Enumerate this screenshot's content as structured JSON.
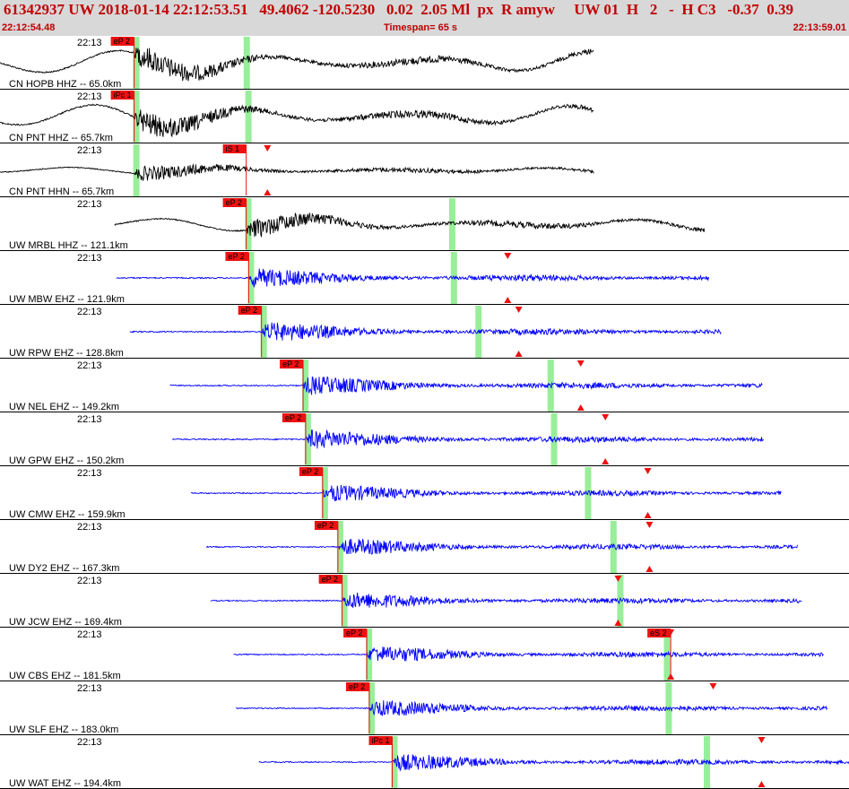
{
  "header": {
    "title": "61342937 UW 2018-01-14 22:12:53.51   49.4062 -120.5230   0.02  2.05 Ml  px  R amyw     UW 01  H   2   -  H C3   -0.37  0.39",
    "start_time": "22:12:54.48",
    "timespan": "Timespan=  65 s",
    "end_time": "22:13:59.01"
  },
  "colors": {
    "header_bg": "#d8d8d8",
    "header_text": "#c00000",
    "broadband_trace": "#000000",
    "short_period_trace": "#0000ff",
    "pick_flag": "#ee1111",
    "pick_window": "#99ee99",
    "tick_marker": "#ee1111"
  },
  "traces": [
    {
      "time_label": "22:13",
      "station_label": "CN HOPB HHZ -- 65.0km",
      "color": "black",
      "start": 0.0,
      "end": 0.7,
      "onset": 0.158,
      "amp": 0.55,
      "lowfreq": 0.45,
      "picks": [
        {
          "label": "eP 2",
          "pos": 0.158
        }
      ],
      "windows": [
        0.158,
        0.288
      ],
      "markers": []
    },
    {
      "time_label": "22:13",
      "station_label": "CN PNT HHZ -- 65.7km",
      "color": "black",
      "start": 0.0,
      "end": 0.7,
      "onset": 0.158,
      "amp": 0.55,
      "lowfreq": 0.45,
      "picks": [
        {
          "label": "iPc 1",
          "pos": 0.158
        }
      ],
      "windows": [
        0.158,
        0.29
      ],
      "markers": []
    },
    {
      "time_label": "22:13",
      "station_label": "CN PNT HHN -- 65.7km",
      "color": "black",
      "start": 0.0,
      "end": 0.7,
      "onset": 0.158,
      "amp": 0.35,
      "lowfreq": 0.12,
      "picks": [
        {
          "label": "iS 1",
          "pos": 0.29
        }
      ],
      "windows": [
        0.158
      ],
      "markers": [
        {
          "pos": 0.315,
          "top": true
        },
        {
          "pos": 0.315,
          "top": false
        }
      ]
    },
    {
      "time_label": "22:13",
      "station_label": "UW MRBL HHZ -- 121.1km",
      "color": "black",
      "start": 0.135,
      "end": 0.83,
      "onset": 0.29,
      "amp": 0.45,
      "lowfreq": 0.25,
      "picks": [
        {
          "label": "eP 2",
          "pos": 0.29
        }
      ],
      "windows": [
        0.29,
        0.53
      ],
      "markers": []
    },
    {
      "time_label": "22:13",
      "station_label": "UW MBW EHZ -- 121.9km",
      "color": "blue",
      "start": 0.137,
      "end": 0.835,
      "onset": 0.293,
      "amp": 0.45,
      "lowfreq": 0.0,
      "picks": [
        {
          "label": "eP 2",
          "pos": 0.293
        }
      ],
      "windows": [
        0.293,
        0.532
      ],
      "markers": [
        {
          "pos": 0.598,
          "top": true
        },
        {
          "pos": 0.598,
          "top": false
        }
      ]
    },
    {
      "time_label": "22:13",
      "station_label": "UW RPW EHZ -- 128.8km",
      "color": "blue",
      "start": 0.153,
      "end": 0.85,
      "onset": 0.308,
      "amp": 0.45,
      "lowfreq": 0.0,
      "picks": [
        {
          "label": "eP 2",
          "pos": 0.308
        }
      ],
      "windows": [
        0.308,
        0.561
      ],
      "markers": [
        {
          "pos": 0.611,
          "top": true
        },
        {
          "pos": 0.611,
          "top": false
        }
      ]
    },
    {
      "time_label": "22:13",
      "station_label": "UW NEL EHZ -- 149.2km",
      "color": "blue",
      "start": 0.2,
      "end": 0.898,
      "onset": 0.357,
      "amp": 0.45,
      "lowfreq": 0.0,
      "picks": [
        {
          "label": "eP 2",
          "pos": 0.357
        }
      ],
      "windows": [
        0.357,
        0.646
      ],
      "markers": [
        {
          "pos": 0.684,
          "top": true
        },
        {
          "pos": 0.684,
          "top": false
        }
      ]
    },
    {
      "time_label": "22:13",
      "station_label": "UW GPW EHZ -- 150.2km",
      "color": "blue",
      "start": 0.203,
      "end": 0.9,
      "onset": 0.36,
      "amp": 0.45,
      "lowfreq": 0.0,
      "picks": [
        {
          "label": "eP 2",
          "pos": 0.36
        }
      ],
      "windows": [
        0.36,
        0.65
      ],
      "markers": [
        {
          "pos": 0.713,
          "top": true
        },
        {
          "pos": 0.713,
          "top": false
        }
      ]
    },
    {
      "time_label": "22:13",
      "station_label": "UW CMW EHZ -- 159.9km",
      "color": "blue",
      "start": 0.225,
      "end": 0.92,
      "onset": 0.38,
      "amp": 0.4,
      "lowfreq": 0.0,
      "picks": [
        {
          "label": "eP 2",
          "pos": 0.38
        }
      ],
      "windows": [
        0.38,
        0.69
      ],
      "markers": [
        {
          "pos": 0.763,
          "top": true
        },
        {
          "pos": 0.763,
          "top": false
        }
      ]
    },
    {
      "time_label": "22:13",
      "station_label": "UW DY2 EHZ -- 167.3km",
      "color": "blue",
      "start": 0.243,
      "end": 0.94,
      "onset": 0.398,
      "amp": 0.4,
      "lowfreq": 0.0,
      "picks": [
        {
          "label": "eP 2",
          "pos": 0.398
        }
      ],
      "windows": [
        0.398,
        0.72
      ],
      "markers": [
        {
          "pos": 0.765,
          "top": true
        },
        {
          "pos": 0.765,
          "top": false
        }
      ]
    },
    {
      "time_label": "22:13",
      "station_label": "UW JCW EHZ -- 169.4km",
      "color": "blue",
      "start": 0.248,
      "end": 0.945,
      "onset": 0.403,
      "amp": 0.4,
      "lowfreq": 0.0,
      "picks": [
        {
          "label": "eP 2",
          "pos": 0.403
        }
      ],
      "windows": [
        0.403,
        0.728
      ],
      "markers": [
        {
          "pos": 0.728,
          "top": true
        },
        {
          "pos": 0.728,
          "top": false
        }
      ]
    },
    {
      "time_label": "22:13",
      "station_label": "UW CBS EHZ -- 181.5km",
      "color": "blue",
      "start": 0.275,
      "end": 0.97,
      "onset": 0.432,
      "amp": 0.4,
      "lowfreq": 0.0,
      "picks": [
        {
          "label": "eP 2",
          "pos": 0.432
        },
        {
          "label": "eS 2",
          "pos": 0.79
        }
      ],
      "windows": [
        0.432,
        0.783
      ],
      "markers": [
        {
          "pos": 0.79,
          "top": true
        },
        {
          "pos": 0.79,
          "top": false
        }
      ]
    },
    {
      "time_label": "22:13",
      "station_label": "UW SLF EHZ -- 183.0km",
      "color": "blue",
      "start": 0.278,
      "end": 0.975,
      "onset": 0.435,
      "amp": 0.4,
      "lowfreq": 0.0,
      "picks": [
        {
          "label": "eP 2",
          "pos": 0.435
        }
      ],
      "windows": [
        0.435,
        0.785
      ],
      "markers": [
        {
          "pos": 0.84,
          "top": true
        }
      ]
    },
    {
      "time_label": "22:13",
      "station_label": "UW WAT EHZ -- 194.4km",
      "color": "blue",
      "start": 0.305,
      "end": 1.0,
      "onset": 0.462,
      "amp": 0.4,
      "lowfreq": 0.0,
      "picks": [
        {
          "label": "iPc 1",
          "pos": 0.462
        }
      ],
      "windows": [
        0.462,
        0.83
      ],
      "markers": [
        {
          "pos": 0.897,
          "top": true
        },
        {
          "pos": 0.897,
          "top": false
        }
      ]
    }
  ]
}
